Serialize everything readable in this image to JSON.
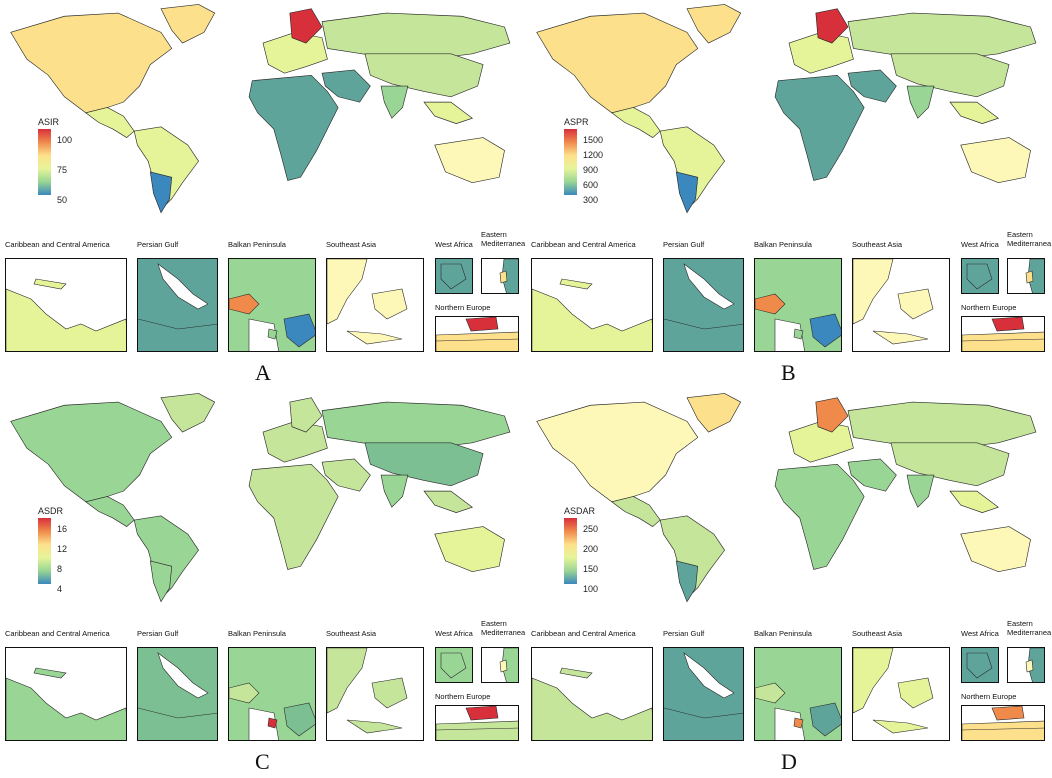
{
  "colors": {
    "ocean": "#ffffff",
    "border": "#2a2a2a",
    "scale_high": "#d7303b",
    "scale_mid_high": "#f08a4b",
    "scale_mid": "#fde08b",
    "scale_mid_low": "#e6f499",
    "scale_low_green": "#99d594",
    "scale_low": "#3a88bd",
    "teal": "#5fa49a"
  },
  "panels": [
    {
      "label": "A",
      "legend": {
        "title": "ASIR",
        "ticks": [
          "100",
          "75",
          "50"
        ]
      },
      "insets": {
        "caribbean": "Caribbean and Central America",
        "persian": "Persian Gulf",
        "balkan": "Balkan Peninsula",
        "seasia": "Southeast Asia",
        "westafrica": "West Africa",
        "eastmed": "Eastern\nMediterranea",
        "northeurope": "Northern Europe"
      }
    },
    {
      "label": "B",
      "legend": {
        "title": "ASPR",
        "ticks": [
          "1500",
          "1200",
          "900",
          "600",
          "300"
        ]
      },
      "insets": {
        "caribbean": "Caribbean and Central America",
        "persian": "Persian Gulf",
        "balkan": "Balkan Peninsula",
        "seasia": "Southeast Asia",
        "westafrica": "West Africa",
        "eastmed": "Eastern\nMediterranea",
        "northeurope": "Northern Europe"
      }
    },
    {
      "label": "C",
      "legend": {
        "title": "ASDR",
        "ticks": [
          "16",
          "12",
          "8",
          "4"
        ]
      },
      "insets": {
        "caribbean": "Caribbean and Central America",
        "persian": "Persian Gulf",
        "balkan": "Balkan Peninsula",
        "seasia": "Southeast Asia",
        "westafrica": "West Africa",
        "eastmed": "Eastern\nMediterranea",
        "northeurope": "Northern Europe"
      }
    },
    {
      "label": "D",
      "legend": {
        "title": "ASDAR",
        "ticks": [
          "250",
          "200",
          "150",
          "100"
        ]
      },
      "insets": {
        "caribbean": "Caribbean and Central America",
        "persian": "Persian Gulf",
        "balkan": "Balkan Peninsula",
        "seasia": "Southeast Asia",
        "westafrica": "West Africa",
        "eastmed": "Eastern\nMediterranea",
        "northeurope": "Northern Europe"
      }
    }
  ]
}
